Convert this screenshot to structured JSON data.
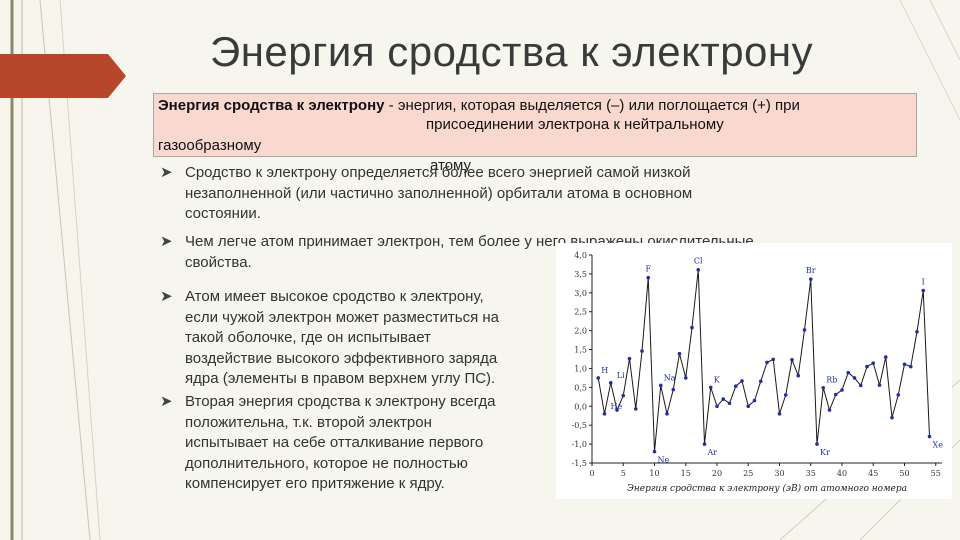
{
  "slide": {
    "title": "Энергия сродства к электрону",
    "definition": {
      "term": "Энергия сродства к электрону",
      "line1_rest": " - энергия, которая выделяется (–) или поглощается (+) при",
      "line2": "присоединении электрона к нейтральному",
      "line3": "газообразному",
      "line4": "атому"
    },
    "bullets": [
      {
        "lines": [
          "Сродство к электрону определяется более всего энергией самой низкой",
          "незаполненной (или частично заполненной) орбитали атома в основном",
          "состоянии."
        ]
      },
      {
        "lines": [
          "Чем легче атом принимает электрон, тем более у него выражены окислительные",
          "свойства."
        ]
      },
      {
        "lines": [
          "Атом имеет высокое сродство к электрону,",
          "если чужой электрон может разместиться на",
          "такой оболочке, где он испытывает",
          "воздействие высокого эффективного заряда",
          "ядра (элементы в правом верхнем углу ПС)."
        ]
      },
      {
        "lines": [
          "Вторая энергия сродства к электрону всегда",
          "положительна, т.к. второй электрон",
          "испытывает на себе отталкивание первого",
          "дополнительного, которое не полностью",
          "компенсирует его притяжение к ядру."
        ]
      }
    ],
    "colors": {
      "background": "#f6f6ef",
      "definition_box": "#f9d8d0",
      "title_arrow": "#b7472a",
      "chart_line": "#1a1a1a",
      "chart_marker": "#1f2fa8",
      "chart_label": "#1f2fa8"
    }
  },
  "chart_data": {
    "type": "line",
    "xlabel": "Энергия сродства к электрону (эВ) от атомного номера",
    "ylabel": "",
    "xlim": [
      0,
      56
    ],
    "ylim": [
      -1.5,
      4.0
    ],
    "x_ticks": [
      "0",
      "5",
      "10",
      "15",
      "20",
      "25",
      "30",
      "35",
      "40",
      "45",
      "50",
      "55"
    ],
    "y_ticks": [
      "-1,5",
      "-1,0",
      "-0,5",
      "0,0",
      "0,5",
      "1,0",
      "1,5",
      "2,0",
      "2,5",
      "3,0",
      "3,5",
      "4,0"
    ],
    "series": [
      {
        "x": [
          1,
          2,
          3,
          4,
          5,
          6,
          7,
          8,
          9,
          10,
          11,
          12,
          13,
          14,
          15,
          16,
          17,
          18,
          19,
          20,
          21,
          22,
          23,
          24,
          25,
          26,
          27,
          28,
          29,
          30,
          31,
          32,
          33,
          34,
          35,
          36,
          37,
          38,
          39,
          40,
          41,
          42,
          43,
          44,
          45,
          46,
          47,
          48,
          49,
          50,
          51,
          52,
          53,
          54
        ],
        "y": [
          0.75,
          -0.2,
          0.62,
          -0.1,
          0.28,
          1.26,
          -0.07,
          1.46,
          3.4,
          -1.2,
          0.55,
          -0.2,
          0.44,
          1.39,
          0.75,
          2.08,
          3.61,
          -1.0,
          0.5,
          0.0,
          0.19,
          0.08,
          0.53,
          0.67,
          0.0,
          0.15,
          0.66,
          1.16,
          1.24,
          -0.2,
          0.3,
          1.23,
          0.81,
          2.02,
          3.36,
          -1.0,
          0.49,
          -0.1,
          0.31,
          0.43,
          0.89,
          0.75,
          0.55,
          1.05,
          1.14,
          0.56,
          1.3,
          -0.3,
          0.3,
          1.11,
          1.05,
          1.97,
          3.06,
          -0.8
        ]
      }
    ],
    "annotations": [
      {
        "text": "H",
        "x": 1,
        "y": 0.75
      },
      {
        "text": "He",
        "x": 2,
        "y": -0.2
      },
      {
        "text": "Li",
        "x": 3,
        "y": 0.62
      },
      {
        "text": "F",
        "x": 9,
        "y": 3.4
      },
      {
        "text": "Ne",
        "x": 10,
        "y": -1.2
      },
      {
        "text": "Na",
        "x": 11,
        "y": 0.55
      },
      {
        "text": "Cl",
        "x": 17,
        "y": 3.61
      },
      {
        "text": "Ar",
        "x": 18,
        "y": -1.0
      },
      {
        "text": "K",
        "x": 19,
        "y": 0.5
      },
      {
        "text": "Br",
        "x": 35,
        "y": 3.36
      },
      {
        "text": "Kr",
        "x": 36,
        "y": -1.0
      },
      {
        "text": "Rb",
        "x": 37,
        "y": 0.49
      },
      {
        "text": "I",
        "x": 53,
        "y": 3.06
      },
      {
        "text": "Xe",
        "x": 54,
        "y": -0.8
      }
    ],
    "grid": false
  }
}
